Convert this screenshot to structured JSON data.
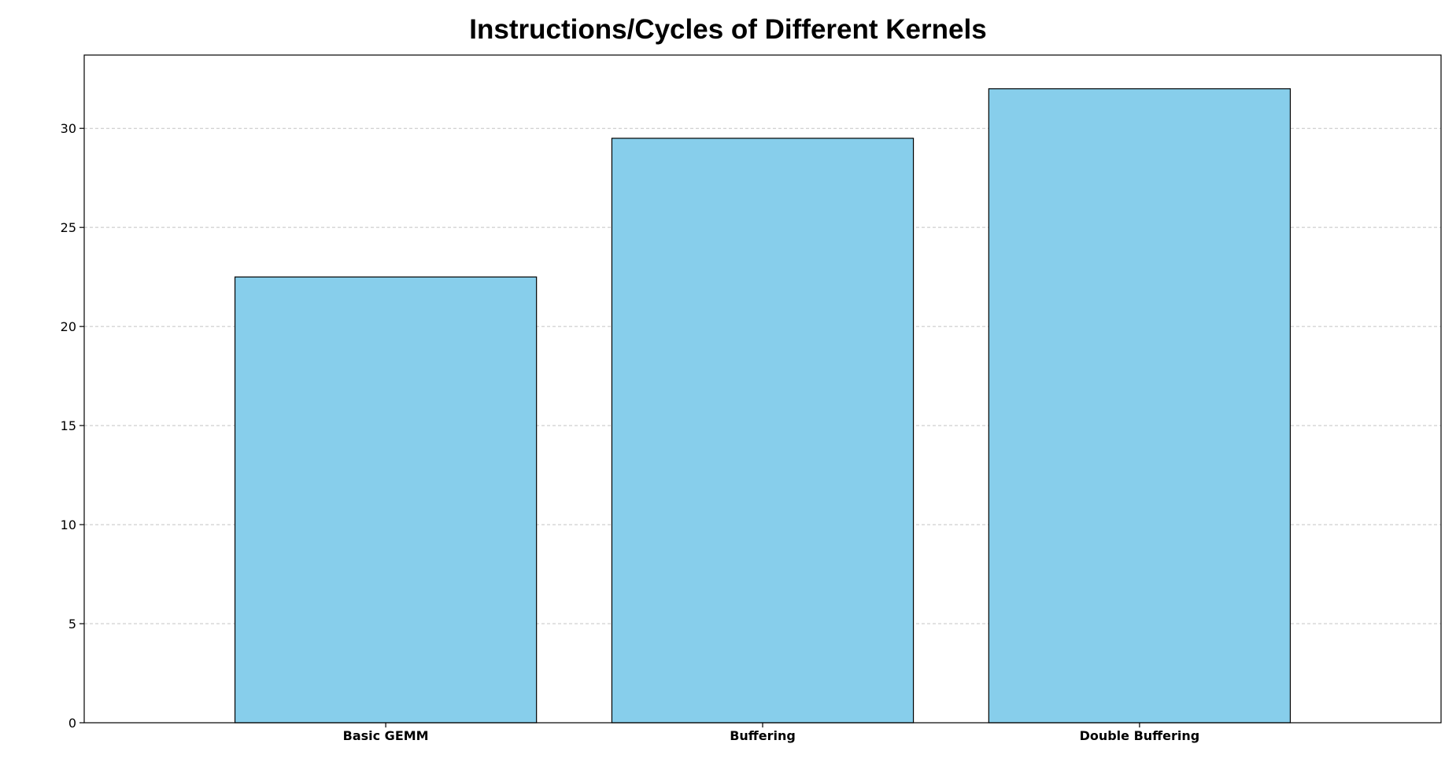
{
  "chart_data": {
    "type": "bar",
    "title": "Instructions/Cycles of Different Kernels",
    "xlabel": "",
    "ylabel": "",
    "categories": [
      "Basic GEMM",
      "Buffering",
      "Double Buffering"
    ],
    "values": [
      22.5,
      29.5,
      32.0
    ],
    "ylim": [
      0,
      33.7
    ],
    "yticks": [
      0,
      5,
      10,
      15,
      20,
      25,
      30
    ],
    "grid": "y-dashed",
    "legend": "none",
    "colors": {
      "bar_fill": "#87CEEB",
      "bar_edge": "#000000",
      "grid": "#c4c4c4",
      "axes": "#000000"
    }
  }
}
